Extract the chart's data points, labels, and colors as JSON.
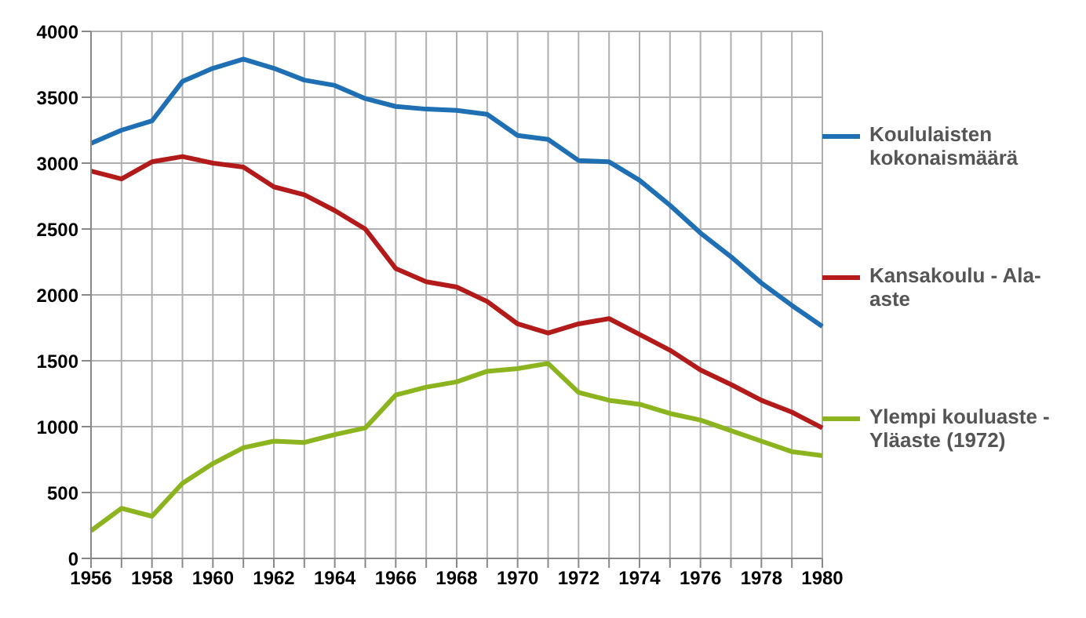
{
  "chart_data": {
    "type": "line",
    "categories": [
      "1956",
      null,
      "1958",
      null,
      "1960",
      null,
      "1962",
      null,
      "1964",
      null,
      "1966",
      null,
      "1968",
      null,
      "1970",
      null,
      "1972",
      null,
      "1974",
      null,
      "1976",
      null,
      "1978",
      null,
      "1980"
    ],
    "series": [
      {
        "name": "Koululaisten kokonaismäärä",
        "color": "#1f6fb4",
        "values": [
          3150,
          3250,
          3320,
          3620,
          3720,
          3790,
          3720,
          3630,
          3590,
          3490,
          3430,
          3410,
          3400,
          3370,
          3210,
          3180,
          3020,
          3010,
          2870,
          2680,
          2470,
          2290,
          2090,
          1920,
          1760
        ]
      },
      {
        "name": "Kansakoulu - Ala-aste",
        "color": "#b31b1b",
        "values": [
          2940,
          2880,
          3010,
          3050,
          3000,
          2970,
          2820,
          2760,
          2640,
          2500,
          2200,
          2100,
          2060,
          1950,
          1780,
          1710,
          1780,
          1820,
          1700,
          1580,
          1430,
          1320,
          1200,
          1110,
          990
        ]
      },
      {
        "name": "Ylempi kouluaste - Yläaste (1972)",
        "color": "#8cb41e",
        "values": [
          210,
          380,
          320,
          570,
          720,
          840,
          890,
          880,
          940,
          990,
          1240,
          1300,
          1340,
          1420,
          1440,
          1480,
          1260,
          1200,
          1170,
          1100,
          1050,
          970,
          890,
          810,
          780
        ]
      }
    ],
    "ylim": [
      0,
      4000
    ],
    "yticks": [
      0,
      500,
      1000,
      1500,
      2000,
      2500,
      3000,
      3500,
      4000
    ],
    "grid": true,
    "legend": "right",
    "marker": "none",
    "line_style": "solid"
  }
}
